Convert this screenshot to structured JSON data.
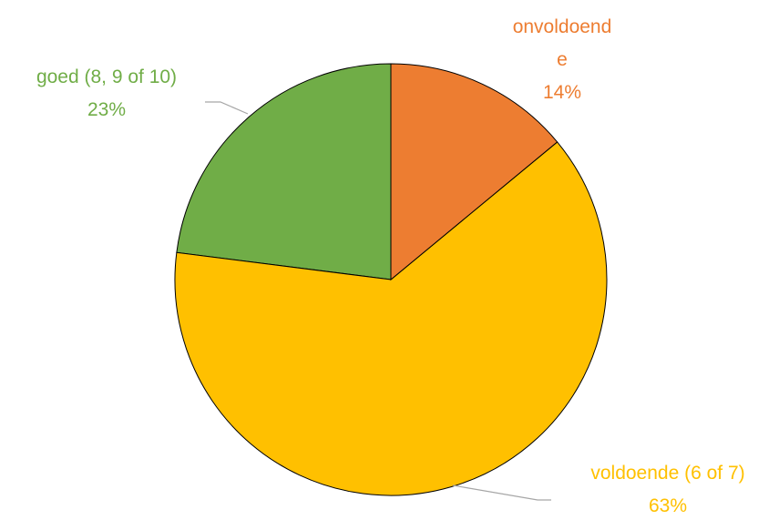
{
  "chart_data": {
    "type": "pie",
    "categories": [
      "onvoldoende",
      "voldoende (6 of 7)",
      "goed (8, 9 of 10)"
    ],
    "values": [
      14,
      63,
      23
    ],
    "value_labels": [
      "14%",
      "63%",
      "23%"
    ],
    "colors": [
      "#ED7D31",
      "#FFC000",
      "#70AD47"
    ]
  }
}
